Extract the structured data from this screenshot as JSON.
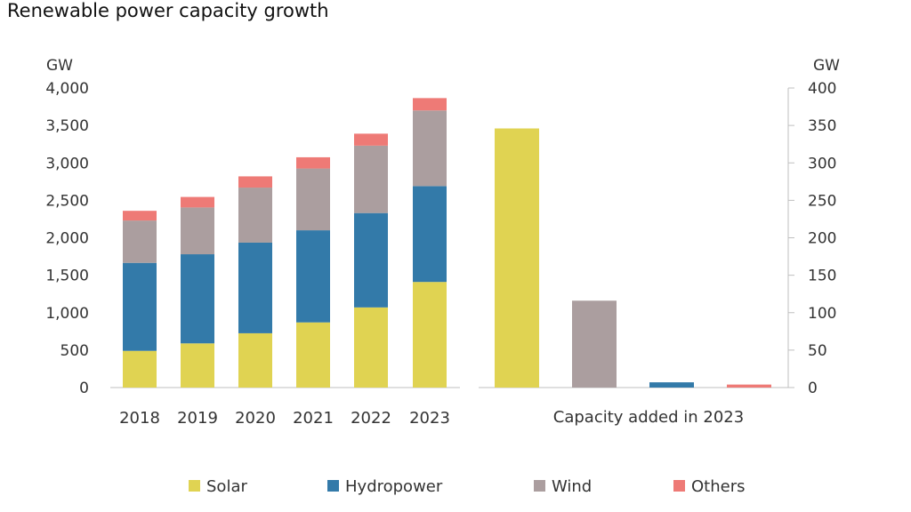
{
  "title": "Renewable power capacity growth",
  "colors": {
    "Solar": "#e0d352",
    "Hydropower": "#337aa9",
    "Wind": "#ab9e9f",
    "Others": "#ee7a76",
    "axis": "#bfbfbf"
  },
  "chart_data": [
    {
      "type": "bar",
      "stacked": true,
      "y_unit_label": "GW",
      "ylim": [
        0,
        4000
      ],
      "yticks": [
        "0",
        "500",
        "1,000",
        "1,500",
        "2,000",
        "2,500",
        "3,000",
        "3,500",
        "4,000"
      ],
      "categories": [
        "2018",
        "2019",
        "2020",
        "2021",
        "2022",
        "2023"
      ],
      "series": [
        {
          "name": "Solar",
          "values": [
            490,
            590,
            725,
            870,
            1070,
            1410
          ]
        },
        {
          "name": "Hydropower",
          "values": [
            1175,
            1190,
            1210,
            1230,
            1260,
            1280
          ]
        },
        {
          "name": "Wind",
          "values": [
            565,
            625,
            735,
            825,
            900,
            1010
          ]
        },
        {
          "name": "Others",
          "values": [
            130,
            140,
            150,
            150,
            160,
            165
          ]
        }
      ],
      "grid": false
    },
    {
      "type": "bar",
      "y_unit_label": "GW",
      "ylim": [
        0,
        400
      ],
      "yticks": [
        "0",
        "50",
        "100",
        "150",
        "200",
        "250",
        "300",
        "350",
        "400"
      ],
      "xlabel": "Capacity added in 2023",
      "categories": [
        "Solar",
        "Wind",
        "Hydropower",
        "Others"
      ],
      "values": [
        346,
        116,
        7,
        4
      ],
      "grid": false
    }
  ],
  "legend": {
    "placement": "bottom",
    "items": [
      "Solar",
      "Hydropower",
      "Wind",
      "Others"
    ]
  }
}
